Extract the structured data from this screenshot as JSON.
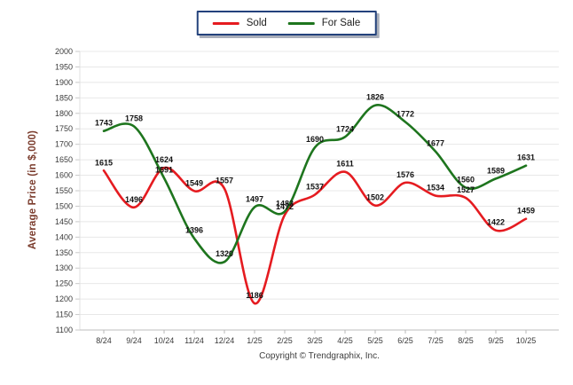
{
  "legend": {
    "position": "top-center",
    "border_color": "#24427c"
  },
  "footer_copyright": "Copyright © Trendgraphix, Inc.",
  "colors": {
    "sold_line": "#e51b20",
    "for_sale_line": "#1e751e",
    "gridline": "#e8e8e8",
    "axis_line": "#c9c9c9",
    "tick_text": "#3b3b3b",
    "value_label": "#111111",
    "y_axis_title": "#7b3c2d",
    "legend_border": "#24427c"
  },
  "chart_data": {
    "type": "line",
    "title": "",
    "xlabel": "",
    "ylabel": "Average Price (in $,000)",
    "categories": [
      "8/24",
      "9/24",
      "10/24",
      "11/24",
      "12/24",
      "1/25",
      "2/25",
      "3/25",
      "4/25",
      "5/25",
      "6/25",
      "7/25",
      "8/25",
      "9/25",
      "10/25"
    ],
    "series": [
      {
        "name": "Sold",
        "color": "#e51b20",
        "values": [
          1615,
          1496,
          1624,
          1549,
          1557,
          1186,
          1472,
          1537,
          1611,
          1502,
          1576,
          1534,
          1527,
          1422,
          1459
        ]
      },
      {
        "name": "For Sale",
        "color": "#1e751e",
        "values": [
          1743,
          1758,
          1591,
          1396,
          1320,
          1497,
          1483,
          1690,
          1724,
          1826,
          1772,
          1677,
          1560,
          1589,
          1631
        ]
      }
    ],
    "ylim": [
      1100,
      2000
    ],
    "ytick_step": 50,
    "grid": true,
    "legend_position": "top-center",
    "data_labels": true
  }
}
